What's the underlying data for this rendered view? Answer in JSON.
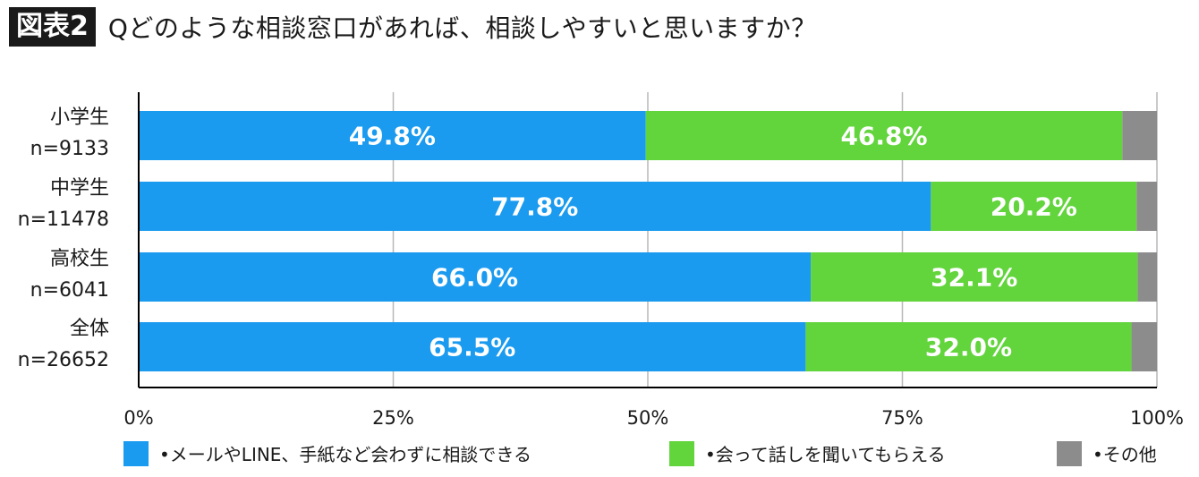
{
  "header": {
    "fig_label": "図表2",
    "title": "Qどのような相談窓口があれば、相談しやすいと思いますか？"
  },
  "colors": {
    "series1": "#1a9bef",
    "series2": "#62d43c",
    "series3": "#8c8c8c",
    "axis": "#000000",
    "grid": "#b8b8b8"
  },
  "chart_data": {
    "type": "bar",
    "orientation": "horizontal",
    "stacked": "percent",
    "categories": [
      {
        "name": "小学生",
        "n": "n=9133"
      },
      {
        "name": "中学生",
        "n": "n=11478"
      },
      {
        "name": "高校生",
        "n": "n=6041"
      },
      {
        "name": "全体",
        "n": "n=26652"
      }
    ],
    "series": [
      {
        "name": "•メールやLINE、手紙など会わずに相談できる",
        "values": [
          49.8,
          77.8,
          66.0,
          65.5
        ],
        "labels": [
          "49.8%",
          "77.8%",
          "66.0%",
          "65.5%"
        ]
      },
      {
        "name": "•会って話しを聞いてもらえる",
        "values": [
          46.8,
          20.2,
          32.1,
          32.0
        ],
        "labels": [
          "46.8%",
          "20.2%",
          "32.1%",
          "32.0%"
        ]
      },
      {
        "name": "•その他",
        "values": [
          3.4,
          2.0,
          1.9,
          2.5
        ],
        "labels": [
          "",
          "",
          "",
          ""
        ]
      }
    ],
    "xlim": [
      0,
      100
    ],
    "xticks": [
      "0%",
      "25%",
      "50%",
      "75%",
      "100%"
    ],
    "grid": true,
    "legend_position": "bottom"
  }
}
